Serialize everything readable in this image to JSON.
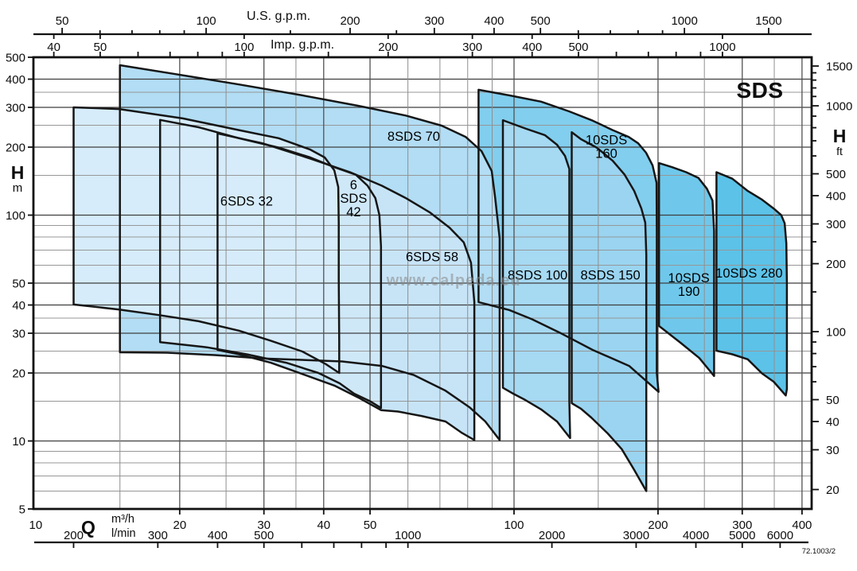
{
  "title": "SDS",
  "watermark": "www.calpeda.eu",
  "doc_ref": "72.1003/2",
  "colors": {
    "outline": "#161616",
    "frame": "#111111",
    "grid_major": "#3f3f3f",
    "grid_minor": "#979797",
    "grid_v_major": "#525252",
    "grid_v_minor": "#8f8f8f",
    "text": "#0d0d0d",
    "watermark": "#8a8a8a"
  },
  "chart_data": {
    "type": "area",
    "title": "SDS",
    "description": "Pump family hydraulic coverage chart: flow Q vs head H on log-log scales, nine model envelopes",
    "q_range_m3h": [
      9.89,
      419
    ],
    "h_range_m": [
      5,
      500
    ],
    "conversions": {
      "us_gpm_to_m3h": 0.22712,
      "imp_gpm_to_m3h": 0.27276,
      "ft_to_m": 0.3048,
      "lmin_to_m3h": 0.06
    },
    "axes": {
      "top_us_gpm": {
        "title": "U.S. g.p.m.",
        "ticks": [
          50,
          60,
          70,
          80,
          90,
          100,
          150,
          200,
          250,
          300,
          400,
          500,
          600,
          700,
          800,
          900,
          1000,
          1500
        ],
        "labeled": [
          50,
          100,
          200,
          300,
          400,
          500,
          1000,
          1500
        ]
      },
      "top_imp_gpm": {
        "title": "Imp. g.p.m.",
        "ticks": [
          40,
          50,
          60,
          70,
          80,
          90,
          100,
          150,
          200,
          300,
          400,
          500,
          600,
          700,
          800,
          900,
          1000
        ],
        "labeled": [
          40,
          50,
          100,
          200,
          300,
          400,
          500,
          1000
        ]
      },
      "left_h_m": {
        "title": "H",
        "unit": "m",
        "labeled": [
          5,
          10,
          20,
          30,
          40,
          50,
          100,
          200,
          300,
          400,
          500
        ],
        "minor_grid": [
          6,
          7,
          8,
          9,
          15,
          25,
          35,
          60,
          70,
          80,
          90,
          150,
          250,
          350
        ]
      },
      "right_h_ft": {
        "title": "H",
        "unit": "ft",
        "ticks": [
          20,
          30,
          40,
          50,
          60,
          70,
          80,
          90,
          100,
          150,
          200,
          250,
          300,
          400,
          500,
          600,
          700,
          800,
          900,
          1000,
          1100,
          1200,
          1300,
          1400,
          1500
        ],
        "labeled": [
          20,
          30,
          40,
          50,
          100,
          200,
          300,
          400,
          500,
          1000,
          1500
        ]
      },
      "bottom_q_m3h": {
        "title": "Q",
        "unit": "m³/h",
        "labeled": [
          10,
          20,
          30,
          40,
          50,
          100,
          200,
          300,
          400
        ],
        "minor_grid": [
          15,
          25,
          35,
          60,
          70,
          80,
          90,
          150,
          250,
          350
        ],
        "major_grid": [
          20,
          30,
          40,
          50,
          100,
          200,
          300,
          400
        ]
      },
      "bottom_q_lmin": {
        "unit": "l/min",
        "ticks": [
          200,
          300,
          400,
          500,
          600,
          700,
          800,
          900,
          1000,
          2000,
          3000,
          4000,
          5000,
          6000
        ],
        "labeled": [
          200,
          300,
          400,
          500,
          1000,
          2000,
          3000,
          4000,
          5000,
          6000
        ]
      }
    },
    "regions": [
      {
        "name": "6SDS 32",
        "label_lines": [
          "6SDS 32"
        ],
        "label_q": 27.6,
        "label_h": 115,
        "fill": "#d6ecfa",
        "points": [
          [
            12,
            300
          ],
          [
            14.95,
            295
          ],
          [
            20.3,
            268
          ],
          [
            26.6,
            238
          ],
          [
            32.2,
            219
          ],
          [
            37.5,
            195
          ],
          [
            40.2,
            180
          ],
          [
            42.1,
            158
          ],
          [
            42.9,
            133
          ],
          [
            43,
            92
          ],
          [
            43,
            52.5
          ],
          [
            43.1,
            27.4
          ],
          [
            43.1,
            20
          ],
          [
            40.4,
            21.9
          ],
          [
            36.1,
            24.9
          ],
          [
            31,
            27.8
          ],
          [
            26.6,
            30.8
          ],
          [
            21.9,
            33.9
          ],
          [
            18.1,
            36.1
          ],
          [
            14.95,
            38.2
          ],
          [
            12,
            40.2
          ]
        ]
      },
      {
        "name": "6SDS 42",
        "label_lines": [
          "6",
          "SDS",
          "42"
        ],
        "label_q": 46.2,
        "label_h": 118,
        "fill": "#cfe8f8",
        "points": [
          [
            18.2,
            264
          ],
          [
            21.9,
            245
          ],
          [
            26.6,
            219
          ],
          [
            32.2,
            199
          ],
          [
            37.5,
            180
          ],
          [
            42.1,
            163
          ],
          [
            46.7,
            151
          ],
          [
            49.4,
            135
          ],
          [
            51.3,
            119
          ],
          [
            52.3,
            100
          ],
          [
            52.7,
            72.6
          ],
          [
            52.7,
            41.2
          ],
          [
            52.7,
            23.3
          ],
          [
            52.7,
            14
          ],
          [
            50,
            15
          ],
          [
            46.3,
            16.2
          ],
          [
            43.2,
            18
          ],
          [
            39,
            20
          ],
          [
            33.4,
            22.2
          ],
          [
            27.6,
            24.2
          ],
          [
            22.8,
            26
          ],
          [
            18.2,
            27.4
          ]
        ]
      },
      {
        "name": "6SDS 58",
        "label_lines": [
          "6SDS 58"
        ],
        "label_q": 67.4,
        "label_h": 65,
        "fill": "#c7e4f7",
        "points": [
          [
            24,
            230
          ],
          [
            29.8,
            208
          ],
          [
            37.5,
            178
          ],
          [
            45.4,
            155
          ],
          [
            52.9,
            135
          ],
          [
            59.4,
            119
          ],
          [
            66.6,
            103
          ],
          [
            73.3,
            88
          ],
          [
            78.5,
            75.7
          ],
          [
            81.3,
            61.6
          ],
          [
            82.6,
            41.2
          ],
          [
            82.6,
            23.3
          ],
          [
            82.6,
            13.2
          ],
          [
            82.6,
            10.1
          ],
          [
            77.6,
            10.9
          ],
          [
            71.9,
            12.2
          ],
          [
            64.1,
            12.9
          ],
          [
            57.2,
            13.5
          ],
          [
            52.7,
            13.7
          ],
          [
            47.2,
            15.6
          ],
          [
            42.1,
            17.6
          ],
          [
            36.1,
            19.8
          ],
          [
            31,
            22.2
          ],
          [
            26.6,
            24.2
          ],
          [
            24,
            25.3
          ]
        ]
      },
      {
        "name": "8SDS 70",
        "label_lines": [
          "8SDS 70"
        ],
        "label_q": 61.7,
        "label_h": 222,
        "fill": "#b2ddf4",
        "points": [
          [
            15,
            461
          ],
          [
            19.6,
            421
          ],
          [
            26.6,
            379
          ],
          [
            36.1,
            339
          ],
          [
            47.2,
            305
          ],
          [
            59.4,
            276
          ],
          [
            70.6,
            249
          ],
          [
            79.2,
            222
          ],
          [
            85.5,
            192
          ],
          [
            89.8,
            157
          ],
          [
            91.3,
            120
          ],
          [
            93.3,
            79
          ],
          [
            93.3,
            41
          ],
          [
            93.3,
            21.5
          ],
          [
            93.3,
            12.7
          ],
          [
            93.3,
            10.1
          ],
          [
            87.1,
            12.2
          ],
          [
            80.7,
            14.1
          ],
          [
            71.9,
            16.7
          ],
          [
            61.7,
            19.6
          ],
          [
            52.9,
            21.5
          ],
          [
            43.7,
            22.5
          ],
          [
            29.8,
            23.2
          ],
          [
            23.7,
            24
          ],
          [
            18.8,
            24.6
          ],
          [
            15,
            24.7
          ]
        ]
      },
      {
        "name": "8SDS 100",
        "label_lines": [
          "8SDS 100"
        ],
        "label_q": 112,
        "label_h": 54,
        "fill": "#a6d9f2",
        "points": [
          [
            94.8,
            263
          ],
          [
            105.5,
            242
          ],
          [
            116,
            226
          ],
          [
            123,
            205
          ],
          [
            127.8,
            183
          ],
          [
            130.5,
            160
          ],
          [
            130.5,
            109
          ],
          [
            130.5,
            52.5
          ],
          [
            130.5,
            25.3
          ],
          [
            130.5,
            15
          ],
          [
            131,
            10.3
          ],
          [
            123,
            12.2
          ],
          [
            113.9,
            13.8
          ],
          [
            105.5,
            15.2
          ],
          [
            99.6,
            16.2
          ],
          [
            94.8,
            17.2
          ]
        ]
      },
      {
        "name": "8SDS 150",
        "label_lines": [
          "8SDS 150"
        ],
        "label_q": 159,
        "label_h": 54,
        "fill": "#9ad4f0",
        "points": [
          [
            132,
            233
          ],
          [
            138,
            217
          ],
          [
            148.9,
            199
          ],
          [
            160.8,
            174
          ],
          [
            170.3,
            151
          ],
          [
            178.3,
            128
          ],
          [
            184.6,
            107
          ],
          [
            188.1,
            92.6
          ],
          [
            189,
            67
          ],
          [
            189,
            35
          ],
          [
            189,
            18.3
          ],
          [
            189,
            9.6
          ],
          [
            189,
            6
          ],
          [
            178,
            7.5
          ],
          [
            168,
            9.2
          ],
          [
            157,
            10.8
          ],
          [
            145,
            12.7
          ],
          [
            138,
            13.9
          ],
          [
            132,
            14.7
          ]
        ]
      },
      {
        "name": "10SDS 160",
        "label_lines": [
          "10SDS",
          "160"
        ],
        "label_q": 156,
        "label_h": 200,
        "fill": "#82ceee",
        "points": [
          [
            84.3,
            359
          ],
          [
            97.7,
            339
          ],
          [
            113.9,
            318
          ],
          [
            130.3,
            288
          ],
          [
            146,
            262
          ],
          [
            160.8,
            238
          ],
          [
            173.6,
            222
          ],
          [
            181.8,
            208
          ],
          [
            188.8,
            189
          ],
          [
            194.8,
            166
          ],
          [
            198.6,
            139
          ],
          [
            198.8,
            85
          ],
          [
            198.8,
            41
          ],
          [
            198.8,
            20
          ],
          [
            200.5,
            16.5
          ],
          [
            174,
            21.5
          ],
          [
            146,
            25.3
          ],
          [
            126,
            29.8
          ],
          [
            109,
            34.6
          ],
          [
            97.7,
            38
          ],
          [
            84.3,
            41.2
          ]
        ]
      },
      {
        "name": "10SDS 190",
        "label_lines": [
          "10SDS",
          "190"
        ],
        "label_q": 232,
        "label_h": 49,
        "fill": "#6fc8eb",
        "points": [
          [
            201,
            170
          ],
          [
            214,
            163
          ],
          [
            229,
            155
          ],
          [
            243,
            146
          ],
          [
            253,
            131
          ],
          [
            260,
            116
          ],
          [
            262,
            85
          ],
          [
            262,
            41
          ],
          [
            262,
            19.4
          ],
          [
            244,
            23.3
          ],
          [
            223,
            27.2
          ],
          [
            201,
            32.3
          ]
        ]
      },
      {
        "name": "10SDS 280",
        "label_lines": [
          "10SDS 280"
        ],
        "label_q": 310,
        "label_h": 55,
        "fill": "#5cc2e8",
        "points": [
          [
            265,
            155
          ],
          [
            286,
            145
          ],
          [
            308,
            128
          ],
          [
            330,
            117
          ],
          [
            349,
            107
          ],
          [
            362,
            100
          ],
          [
            368,
            92
          ],
          [
            371,
            75
          ],
          [
            372,
            50
          ],
          [
            372,
            30
          ],
          [
            372,
            17
          ],
          [
            370,
            15.9
          ],
          [
            349,
            18.3
          ],
          [
            330,
            19.9
          ],
          [
            308,
            23
          ],
          [
            286,
            24.2
          ],
          [
            265,
            25.1
          ]
        ]
      }
    ]
  }
}
